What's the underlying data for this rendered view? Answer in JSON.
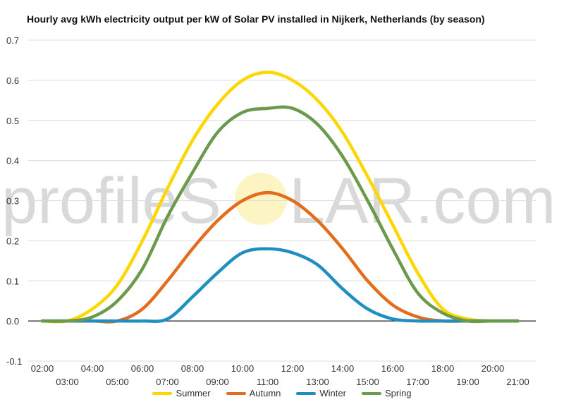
{
  "chart_data": {
    "type": "line",
    "title": "Hourly avg kWh electricity output per kW of Solar PV installed in Nijkerk, Netherlands (by season)",
    "xlabel": "",
    "ylabel": "",
    "ylim": [
      -0.1,
      0.7
    ],
    "yticks": [
      "-0.1",
      "0.0",
      "0.1",
      "0.2",
      "0.3",
      "0.4",
      "0.5",
      "0.6",
      "0.7"
    ],
    "grid": true,
    "legend_position": "bottom",
    "x": [
      "02:00",
      "03:00",
      "04:00",
      "05:00",
      "06:00",
      "07:00",
      "08:00",
      "09:00",
      "10:00",
      "11:00",
      "12:00",
      "13:00",
      "14:00",
      "15:00",
      "16:00",
      "17:00",
      "18:00",
      "19:00",
      "20:00",
      "21:00"
    ],
    "series": [
      {
        "name": "Summer",
        "color": "#ffd700",
        "values": [
          0,
          0,
          0.03,
          0.09,
          0.2,
          0.33,
          0.45,
          0.54,
          0.6,
          0.62,
          0.6,
          0.55,
          0.47,
          0.36,
          0.24,
          0.12,
          0.03,
          0.005,
          0,
          0
        ]
      },
      {
        "name": "Autumn",
        "color": "#e36c1d",
        "values": [
          0,
          0,
          0,
          0,
          0.03,
          0.1,
          0.18,
          0.25,
          0.3,
          0.32,
          0.3,
          0.25,
          0.18,
          0.1,
          0.04,
          0.01,
          0,
          0,
          0,
          0
        ]
      },
      {
        "name": "Winter",
        "color": "#1f8fc2",
        "values": [
          0,
          0,
          0,
          0,
          0,
          0.005,
          0.06,
          0.12,
          0.17,
          0.18,
          0.17,
          0.14,
          0.08,
          0.03,
          0.005,
          0,
          0,
          0,
          0,
          0
        ]
      },
      {
        "name": "Spring",
        "color": "#6b9a4d",
        "values": [
          0,
          0,
          0.01,
          0.05,
          0.13,
          0.26,
          0.37,
          0.47,
          0.52,
          0.53,
          0.53,
          0.49,
          0.41,
          0.3,
          0.18,
          0.07,
          0.02,
          0,
          0,
          0
        ]
      }
    ]
  },
  "watermark": {
    "left": "profileS",
    "right": "LAR.com"
  }
}
